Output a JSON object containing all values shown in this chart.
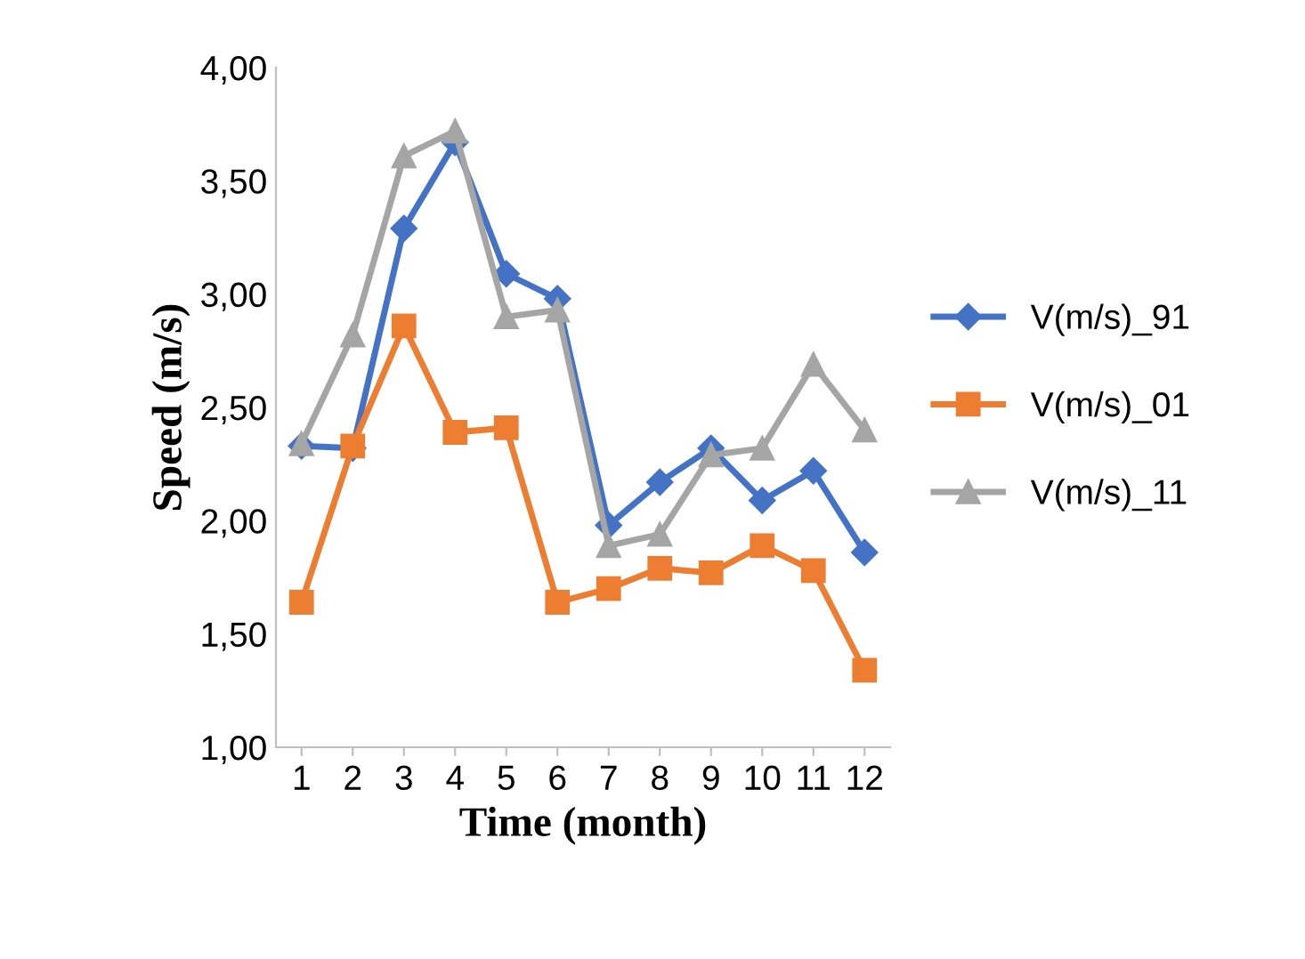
{
  "chart_data": {
    "type": "line",
    "xlabel": "Time (month)",
    "ylabel": "Speed (m/s)",
    "categories": [
      "1",
      "2",
      "3",
      "4",
      "5",
      "6",
      "7",
      "8",
      "9",
      "10",
      "11",
      "12"
    ],
    "series": [
      {
        "name": "V(m/s)_91",
        "color": "#4472c4",
        "marker": "diamond",
        "values": [
          2.33,
          2.32,
          3.29,
          3.67,
          3.09,
          2.98,
          1.98,
          2.17,
          2.32,
          2.09,
          2.22,
          1.86
        ]
      },
      {
        "name": "V(m/s)_01",
        "color": "#ed7d31",
        "marker": "square",
        "values": [
          1.64,
          2.33,
          2.86,
          2.39,
          2.41,
          1.64,
          1.7,
          1.79,
          1.77,
          1.89,
          1.78,
          1.34
        ]
      },
      {
        "name": "V(m/s)_11",
        "color": "#a5a5a5",
        "marker": "triangle",
        "values": [
          2.34,
          2.82,
          3.61,
          3.72,
          2.9,
          2.93,
          1.89,
          1.94,
          2.29,
          2.32,
          2.69,
          2.4
        ]
      }
    ],
    "ylim": [
      1.0,
      4.0
    ],
    "yticks": [
      {
        "value": 1.0,
        "label": "1,00"
      },
      {
        "value": 1.5,
        "label": "1,50"
      },
      {
        "value": 2.0,
        "label": "2,00"
      },
      {
        "value": 2.5,
        "label": "2,50"
      },
      {
        "value": 3.0,
        "label": "3,00"
      },
      {
        "value": 3.5,
        "label": "3,50"
      },
      {
        "value": 4.0,
        "label": "4,00"
      }
    ],
    "grid": false,
    "legend": "right",
    "line_style": "solid"
  }
}
